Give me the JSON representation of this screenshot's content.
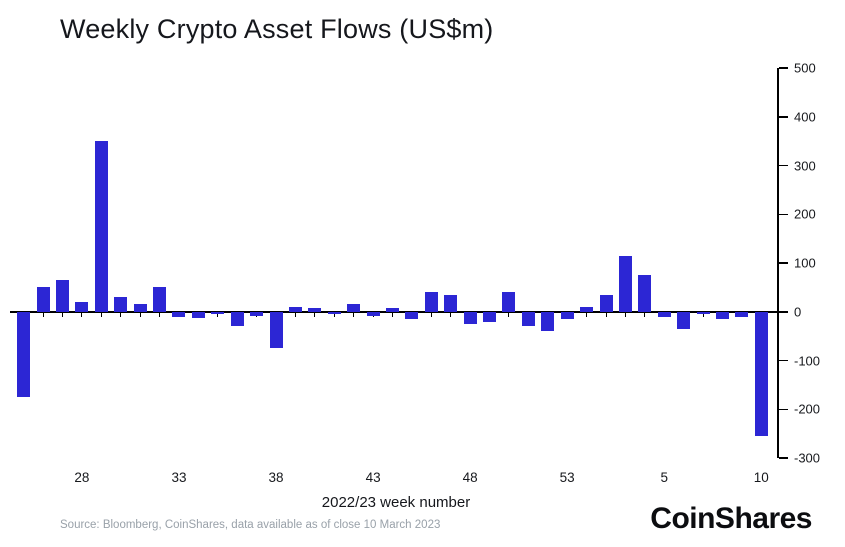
{
  "title": "Weekly Crypto Asset Flows (US$m)",
  "xlabel": "2022/23 week number",
  "source": "Source: Bloomberg, CoinShares, data available as of close 10 March 2023",
  "logo": "CoinShares",
  "colors": {
    "bar": "#2c26d4",
    "axis": "#000000",
    "text": "#17191d",
    "source_text": "#99a1a9"
  },
  "chart_data": {
    "type": "bar",
    "title": "Weekly Crypto Asset Flows (US$m)",
    "xlabel": "2022/23 week number",
    "ylabel": "",
    "ylim": [
      -300,
      500
    ],
    "yticks": [
      500,
      400,
      300,
      200,
      100,
      0,
      -100,
      -200,
      -300
    ],
    "grid": false,
    "legend": "none",
    "x": [
      25,
      26,
      27,
      28,
      29,
      30,
      31,
      32,
      33,
      34,
      35,
      36,
      37,
      38,
      39,
      40,
      41,
      42,
      43,
      44,
      45,
      46,
      47,
      48,
      49,
      50,
      51,
      52,
      53,
      1,
      2,
      3,
      4,
      5,
      6,
      7,
      8,
      9,
      10
    ],
    "values": [
      -175,
      50,
      65,
      20,
      350,
      30,
      15,
      50,
      -10,
      -12,
      -5,
      -30,
      -8,
      -75,
      10,
      8,
      -5,
      15,
      -8,
      8,
      -15,
      40,
      35,
      -25,
      -20,
      40,
      -30,
      -40,
      -15,
      10,
      35,
      115,
      75,
      -10,
      -35,
      -5,
      -15,
      -10,
      -255
    ],
    "xtick_labels": [
      "28",
      "33",
      "38",
      "43",
      "48",
      "53",
      "5",
      "10"
    ],
    "xtick_indices": [
      3,
      8,
      13,
      18,
      23,
      28,
      33,
      38
    ]
  }
}
